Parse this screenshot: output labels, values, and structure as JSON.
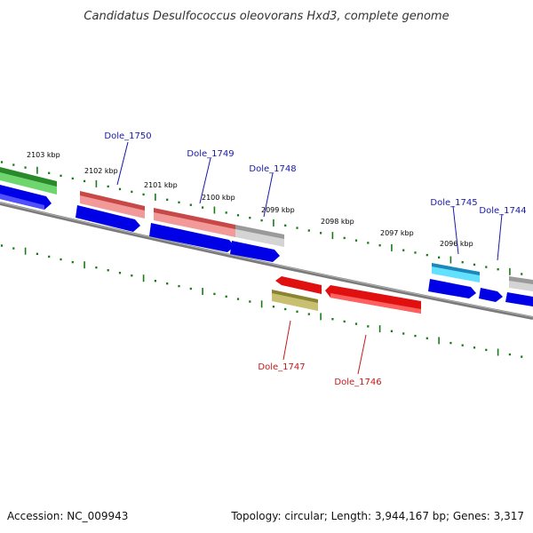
{
  "title": "Candidatus Desulfococcus oleovorans Hxd3, complete genome",
  "footer": {
    "accession": "Accession: NC_009943",
    "summary": "Topology: circular; Length: 3,944,167 bp; Genes: 3,317"
  },
  "colors": {
    "tick": "#1a7a1a",
    "backbone": "#8c8c8c",
    "forward_label": "#1a1aa8",
    "reverse_label": "#c41a1a"
  },
  "ticks": [
    {
      "label": "2103 kbp"
    },
    {
      "label": "2102 kbp"
    },
    {
      "label": "2101 kbp"
    },
    {
      "label": "2100 kbp"
    },
    {
      "label": "2099 kbp"
    },
    {
      "label": "2098 kbp"
    },
    {
      "label": "2097 kbp"
    },
    {
      "label": "2096 kbp"
    }
  ],
  "genes": [
    {
      "label": "Dole_1750",
      "strand": "forward",
      "color": "#e06e6e"
    },
    {
      "label": "Dole_1749",
      "strand": "forward",
      "color": "#e07272"
    },
    {
      "label": "Dole_1748",
      "strand": "forward",
      "color": "#bdbdbd"
    },
    {
      "label": "Dole_1745",
      "strand": "forward",
      "color": "#2ab6d9"
    },
    {
      "label": "Dole_1744",
      "strand": "forward",
      "color": "#bdbdbd"
    },
    {
      "label": "Dole_1747",
      "strand": "reverse",
      "color": "#a8a048"
    },
    {
      "label": "Dole_1746",
      "strand": "reverse",
      "color": "#e01010"
    }
  ]
}
